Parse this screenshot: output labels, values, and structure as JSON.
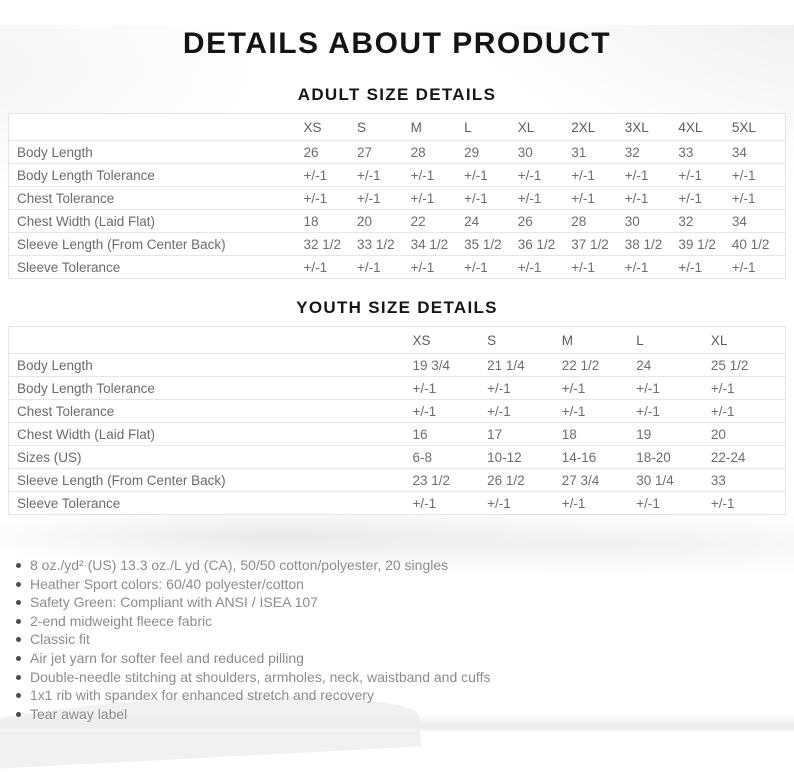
{
  "page": {
    "title": "DETAILS ABOUT PRODUCT"
  },
  "colors": {
    "background": "#ffffff",
    "title_text": "#141414",
    "table_text": "#6e6e6e",
    "table_border": "#e4e4e4",
    "bullet_text": "#8c8c8c",
    "swoosh": "#ededed"
  },
  "adult_table": {
    "heading": "ADULT SIZE DETAILS",
    "columns": [
      "XS",
      "S",
      "M",
      "L",
      "XL",
      "2XL",
      "3XL",
      "4XL",
      "5XL"
    ],
    "rows": [
      {
        "label": "Body Length",
        "values": [
          "26",
          "27",
          "28",
          "29",
          "30",
          "31",
          "32",
          "33",
          "34"
        ]
      },
      {
        "label": "Body Length Tolerance",
        "values": [
          "+/-1",
          "+/-1",
          "+/-1",
          "+/-1",
          "+/-1",
          "+/-1",
          "+/-1",
          "+/-1",
          "+/-1"
        ]
      },
      {
        "label": "Chest Tolerance",
        "values": [
          "+/-1",
          "+/-1",
          "+/-1",
          "+/-1",
          "+/-1",
          "+/-1",
          "+/-1",
          "+/-1",
          "+/-1"
        ]
      },
      {
        "label": "Chest Width (Laid Flat)",
        "values": [
          "18",
          "20",
          "22",
          "24",
          "26",
          "28",
          "30",
          "32",
          "34"
        ]
      },
      {
        "label": "Sleeve Length (From Center Back)",
        "values": [
          "32 1/2",
          "33 1/2",
          "34 1/2",
          "35 1/2",
          "36 1/2",
          "37 1/2",
          "38 1/2",
          "39 1/2",
          "40 1/2"
        ]
      },
      {
        "label": "Sleeve Tolerance",
        "values": [
          "+/-1",
          "+/-1",
          "+/-1",
          "+/-1",
          "+/-1",
          "+/-1",
          "+/-1",
          "+/-1",
          "+/-1"
        ]
      }
    ]
  },
  "youth_table": {
    "heading": "YOUTH SIZE DETAILS",
    "columns": [
      "XS",
      "S",
      "M",
      "L",
      "XL"
    ],
    "rows": [
      {
        "label": "Body Length",
        "values": [
          "19 3/4",
          "21 1/4",
          "22 1/2",
          "24",
          "25 1/2"
        ]
      },
      {
        "label": "Body Length Tolerance",
        "values": [
          "+/-1",
          "+/-1",
          "+/-1",
          "+/-1",
          "+/-1"
        ]
      },
      {
        "label": "Chest Tolerance",
        "values": [
          "+/-1",
          "+/-1",
          "+/-1",
          "+/-1",
          "+/-1"
        ]
      },
      {
        "label": "Chest Width (Laid Flat)",
        "values": [
          "16",
          "17",
          "18",
          "19",
          "20"
        ]
      },
      {
        "label": "Sizes (US)",
        "values": [
          "6-8",
          "10-12",
          "14-16",
          "18-20",
          "22-24"
        ]
      },
      {
        "label": "Sleeve Length (From Center Back)",
        "values": [
          "23 1/2",
          "26 1/2",
          "27 3/4",
          "30 1/4",
          "33"
        ]
      },
      {
        "label": "Sleeve Tolerance",
        "values": [
          "+/-1",
          "+/-1",
          "+/-1",
          "+/-1",
          "+/-1"
        ]
      }
    ]
  },
  "features": {
    "items": [
      "8 oz./yd² (US) 13.3 oz./L yd (CA), 50/50 cotton/polyester, 20 singles",
      "Heather Sport colors: 60/40 polyester/cotton",
      "Safety Green: Compliant with ANSI / ISEA 107",
      "2-end midweight fleece fabric",
      "Classic fit",
      "Air jet yarn for softer feel and reduced pilling",
      "Double-needle stitching at shoulders, armholes, neck, waistband and cuffs",
      "1x1 rib with spandex for enhanced stretch and recovery",
      "Tear away label"
    ]
  }
}
